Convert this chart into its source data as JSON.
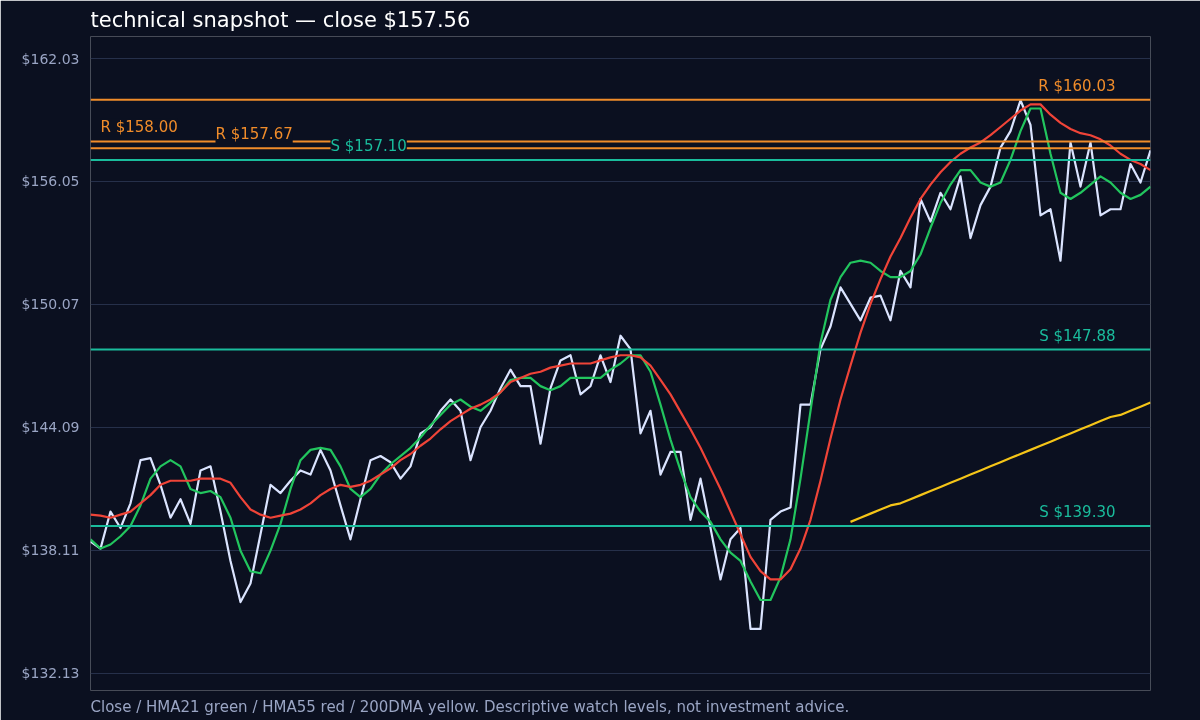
{
  "chart_data": {
    "type": "line",
    "title": "technical snapshot — close $157.56",
    "annotations": [
      "Close / HMA21 green / HMA55 red / 200DMA yellow. Descriptive watch levels, not investment advice."
    ],
    "categories": [
      null,
      null,
      null,
      null,
      null,
      null,
      null,
      null,
      null,
      null,
      null,
      null,
      null,
      null,
      null,
      null,
      null,
      null,
      null,
      null,
      null,
      null,
      null,
      null,
      null,
      null,
      null,
      null,
      null,
      null,
      null,
      null,
      null,
      null,
      null,
      null,
      null,
      null,
      null,
      null,
      null,
      null,
      null,
      null,
      null,
      null,
      null,
      null,
      null,
      null,
      null,
      null,
      null,
      null,
      null,
      null,
      null,
      null,
      null,
      null,
      null,
      null,
      null,
      null,
      null,
      null,
      null,
      null,
      null,
      null,
      null,
      null,
      null,
      null,
      null,
      null,
      null,
      null,
      null,
      null,
      null,
      null,
      null,
      null,
      null,
      null,
      null,
      null,
      null,
      null,
      null,
      null,
      null,
      null,
      null,
      null,
      null,
      null,
      null,
      null,
      null,
      null,
      null,
      null,
      null,
      null,
      null
    ],
    "ylim": [
      131.3,
      163.1
    ],
    "yticks": [
      {
        "value": 132.13,
        "label": "$132.13"
      },
      {
        "value": 138.11,
        "label": "$138.11"
      },
      {
        "value": 144.09,
        "label": "$144.09"
      },
      {
        "value": 150.07,
        "label": "$150.07"
      },
      {
        "value": 156.05,
        "label": "$156.05"
      },
      {
        "value": 162.03,
        "label": "$162.03"
      }
    ],
    "grid": "y",
    "tick_labels": "y",
    "series": [
      {
        "color": "#dbe4ff",
        "values": [
          138.55,
          138.2,
          140.0,
          139.2,
          140.4,
          142.5,
          142.6,
          141.3,
          139.7,
          140.6,
          139.4,
          142.0,
          142.2,
          140.0,
          137.6,
          135.6,
          136.5,
          138.9,
          141.3,
          140.9,
          141.5,
          142.0,
          141.8,
          143.0,
          142.0,
          140.3,
          138.65,
          140.6,
          142.5,
          142.7,
          142.4,
          141.6,
          142.2,
          143.8,
          144.1,
          144.9,
          145.45,
          144.9,
          142.5,
          144.1,
          144.9,
          146.0,
          146.9,
          146.1,
          146.1,
          143.3,
          146.0,
          147.35,
          147.6,
          145.7,
          146.1,
          147.6,
          146.3,
          148.55,
          147.9,
          143.8,
          144.9,
          141.8,
          142.9,
          142.9,
          139.6,
          141.6,
          139.2,
          136.7,
          138.65,
          139.2,
          134.3,
          134.3,
          139.6,
          140.0,
          140.2,
          145.2,
          145.2,
          147.9,
          149.0,
          150.9,
          150.1,
          149.3,
          150.4,
          150.5,
          149.3,
          151.7,
          150.9,
          155.2,
          154.1,
          155.5,
          154.7,
          156.3,
          153.3,
          154.9,
          155.8,
          157.7,
          158.5,
          160.0,
          158.8,
          154.4,
          154.7,
          152.2,
          157.95,
          155.8,
          157.95,
          154.4,
          154.7,
          154.7,
          156.9,
          156.0,
          157.56
        ]
      },
      {
        "color": "#22c55e",
        "values": [
          138.65,
          138.2,
          138.4,
          138.8,
          139.3,
          140.3,
          141.6,
          142.2,
          142.5,
          142.2,
          141.1,
          140.9,
          141.0,
          140.7,
          139.7,
          138.1,
          137.1,
          137.0,
          138.1,
          139.4,
          141.1,
          142.5,
          143.0,
          143.1,
          143.0,
          142.2,
          141.1,
          140.7,
          141.1,
          141.8,
          142.3,
          142.7,
          143.1,
          143.6,
          144.2,
          144.7,
          145.2,
          145.45,
          145.1,
          144.9,
          145.3,
          145.8,
          146.4,
          146.5,
          146.5,
          146.1,
          145.9,
          146.1,
          146.5,
          146.5,
          146.5,
          146.5,
          146.9,
          147.2,
          147.6,
          147.6,
          146.8,
          145.2,
          143.5,
          142.0,
          140.7,
          140.0,
          139.5,
          138.65,
          138.0,
          137.6,
          136.6,
          135.7,
          135.7,
          136.8,
          138.65,
          141.6,
          144.9,
          148.2,
          150.3,
          151.4,
          152.1,
          152.2,
          152.1,
          151.7,
          151.4,
          151.4,
          151.7,
          152.5,
          153.8,
          155.0,
          155.9,
          156.6,
          156.6,
          156.0,
          155.8,
          156.0,
          157.1,
          158.5,
          159.6,
          159.6,
          157.4,
          155.5,
          155.2,
          155.5,
          155.9,
          156.3,
          156.0,
          155.5,
          155.2,
          155.4,
          155.8
        ]
      },
      {
        "color": "#f04438",
        "values": [
          139.85,
          139.8,
          139.7,
          139.85,
          140.0,
          140.4,
          140.8,
          141.3,
          141.5,
          141.5,
          141.5,
          141.6,
          141.6,
          141.6,
          141.4,
          140.7,
          140.1,
          139.85,
          139.7,
          139.8,
          139.9,
          140.1,
          140.4,
          140.8,
          141.1,
          141.3,
          141.2,
          141.3,
          141.5,
          141.8,
          142.1,
          142.5,
          142.8,
          143.2,
          143.55,
          144.0,
          144.4,
          144.7,
          145.0,
          145.2,
          145.45,
          145.8,
          146.3,
          146.5,
          146.7,
          146.8,
          147.0,
          147.1,
          147.2,
          147.2,
          147.2,
          147.35,
          147.5,
          147.6,
          147.6,
          147.5,
          147.1,
          146.4,
          145.7,
          144.85,
          144.0,
          143.1,
          142.1,
          141.1,
          140.0,
          138.9,
          137.8,
          137.1,
          136.7,
          136.7,
          137.2,
          138.2,
          139.6,
          141.5,
          143.55,
          145.45,
          147.1,
          148.7,
          150.1,
          151.3,
          152.4,
          153.3,
          154.3,
          155.2,
          155.9,
          156.5,
          157.0,
          157.4,
          157.7,
          157.95,
          158.3,
          158.7,
          159.1,
          159.5,
          159.8,
          159.8,
          159.3,
          158.9,
          158.6,
          158.4,
          158.3,
          158.1,
          157.8,
          157.4,
          157.1,
          156.9,
          156.6
        ]
      },
      {
        "color": "#f5c518",
        "values": [
          null,
          null,
          null,
          null,
          null,
          null,
          null,
          null,
          null,
          null,
          null,
          null,
          null,
          null,
          null,
          null,
          null,
          null,
          null,
          null,
          null,
          null,
          null,
          null,
          null,
          null,
          null,
          null,
          null,
          null,
          null,
          null,
          null,
          null,
          null,
          null,
          null,
          null,
          null,
          null,
          null,
          null,
          null,
          null,
          null,
          null,
          null,
          null,
          null,
          null,
          null,
          null,
          null,
          null,
          null,
          null,
          null,
          null,
          null,
          null,
          null,
          null,
          null,
          null,
          null,
          null,
          null,
          null,
          null,
          null,
          null,
          null,
          null,
          null,
          null,
          null,
          139.5,
          139.7,
          139.9,
          140.1,
          140.3,
          140.4,
          140.6,
          140.8,
          141.0,
          141.2,
          141.4,
          141.6,
          141.8,
          142.0,
          142.2,
          142.4,
          142.6,
          142.8,
          143.0,
          143.2,
          143.4,
          143.6,
          143.8,
          144.0,
          144.2,
          144.4,
          144.6,
          144.7,
          144.9,
          145.1,
          145.3
        ]
      }
    ],
    "ref_lines": [
      {
        "axis": "y",
        "value": 160.03,
        "label": "R $160.03",
        "color": "#f08c2a"
      },
      {
        "axis": "y",
        "value": 158.0,
        "label": "R $158.00",
        "color": "#f08c2a"
      },
      {
        "axis": "y",
        "value": 157.67,
        "label": "R $157.67",
        "color": "#f08c2a"
      },
      {
        "axis": "y",
        "value": 157.1,
        "label": "S $157.10",
        "color": "#1abc9c"
      },
      {
        "axis": "y",
        "value": 147.88,
        "label": "S $147.88",
        "color": "#1abc9c"
      },
      {
        "axis": "y",
        "value": 139.3,
        "label": "S $139.30",
        "color": "#1abc9c"
      }
    ]
  }
}
